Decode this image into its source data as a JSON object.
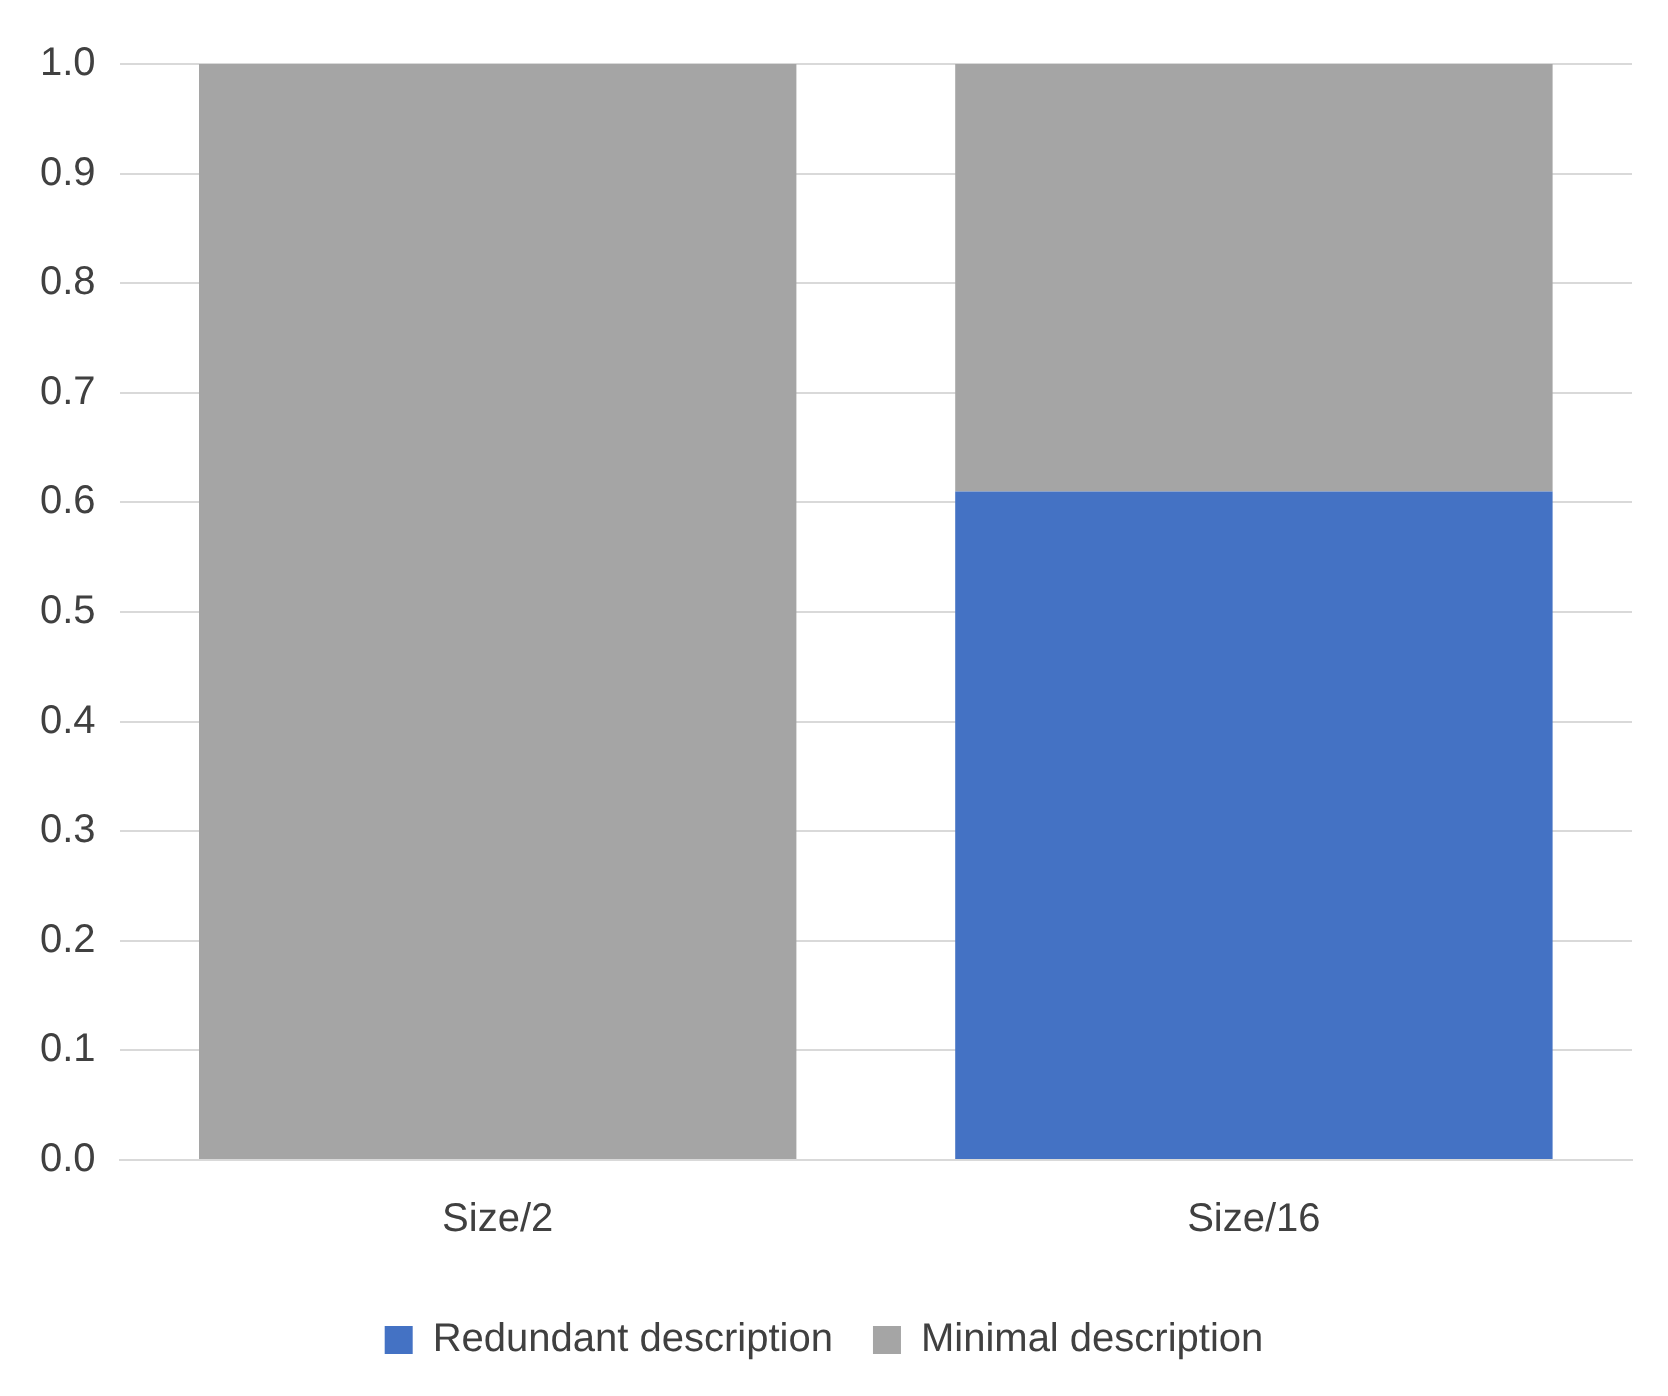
{
  "chart_data": {
    "type": "bar",
    "stacked": true,
    "categories": [
      "Size/2",
      "Size/16"
    ],
    "series": [
      {
        "name": "Redundant description",
        "color": "#4472c4",
        "values": [
          0,
          0.61
        ]
      },
      {
        "name": "Minimal description",
        "color": "#a5a5a5",
        "values": [
          1.0,
          0.39
        ]
      }
    ],
    "ylim": [
      0,
      1
    ],
    "yticks": [
      {
        "value": 0,
        "label": "0.0"
      },
      {
        "value": 0.1,
        "label": "0.1"
      },
      {
        "value": 0.2,
        "label": "0.2"
      },
      {
        "value": 0.3,
        "label": "0.3"
      },
      {
        "value": 0.4,
        "label": "0.4"
      },
      {
        "value": 0.5,
        "label": "0.5"
      },
      {
        "value": 0.6,
        "label": "0.6"
      },
      {
        "value": 0.7,
        "label": "0.7"
      },
      {
        "value": 0.8,
        "label": "0.8"
      },
      {
        "value": 0.9,
        "label": "0.9"
      },
      {
        "value": 1,
        "label": "1.0"
      }
    ],
    "grid": "y",
    "legend": "bottom"
  }
}
